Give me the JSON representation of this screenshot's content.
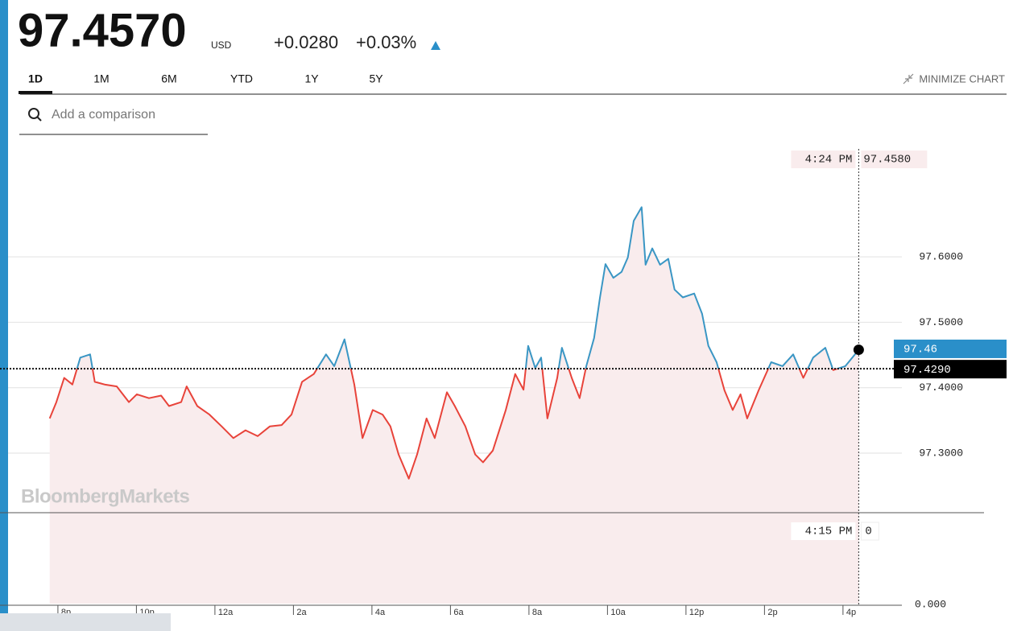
{
  "header": {
    "price": "97.4570",
    "currency": "USD",
    "change": "+0.0280",
    "change_percent": "+0.03%"
  },
  "tabs": [
    "1D",
    "1M",
    "6M",
    "YTD",
    "1Y",
    "5Y"
  ],
  "active_tab": "1D",
  "minimize_label": "MINIMIZE CHART",
  "search_placeholder": "Add a comparison",
  "watermark": "BloombergMarkets",
  "chart_data": {
    "type": "line",
    "x": [
      19.79,
      19.96,
      20.16,
      20.37,
      20.57,
      20.82,
      20.94,
      21.19,
      21.5,
      21.81,
      22.01,
      22.32,
      22.63,
      22.83,
      23.14,
      23.28,
      23.55,
      23.86,
      24.17,
      24.47,
      24.78,
      25.09,
      25.4,
      25.7,
      25.95,
      26.22,
      26.52,
      26.83,
      27.04,
      27.3,
      27.55,
      27.76,
      28.02,
      28.27,
      28.47,
      28.68,
      28.94,
      29.15,
      29.39,
      29.6,
      29.91,
      30.11,
      30.38,
      30.63,
      30.83,
      31.08,
      31.41,
      31.65,
      31.86,
      31.98,
      32.16,
      32.31,
      32.47,
      32.72,
      32.84,
      33.09,
      33.29,
      33.46,
      33.66,
      33.81,
      33.95,
      34.15,
      34.36,
      34.52,
      34.67,
      34.87,
      34.97,
      35.14,
      35.34,
      35.55,
      35.71,
      35.92,
      36.21,
      36.41,
      36.57,
      36.78,
      36.98,
      37.19,
      37.39,
      37.56,
      37.85,
      38.17,
      38.46,
      38.73,
      38.99,
      39.24,
      39.55,
      39.75,
      40.06,
      40.4
    ],
    "values": [
      97.353,
      97.378,
      97.415,
      97.405,
      97.446,
      97.451,
      97.409,
      97.405,
      97.402,
      97.378,
      97.39,
      97.384,
      97.388,
      97.372,
      97.378,
      97.402,
      97.372,
      97.359,
      97.341,
      97.323,
      97.335,
      97.326,
      97.341,
      97.343,
      97.359,
      97.409,
      97.421,
      97.451,
      97.433,
      97.474,
      97.405,
      97.323,
      97.366,
      97.359,
      97.341,
      97.298,
      97.261,
      97.298,
      97.353,
      97.323,
      97.393,
      97.372,
      97.341,
      97.298,
      97.286,
      97.304,
      97.366,
      97.421,
      97.397,
      97.464,
      97.43,
      97.446,
      97.353,
      97.415,
      97.461,
      97.415,
      97.384,
      97.433,
      97.476,
      97.538,
      97.589,
      97.568,
      97.577,
      97.599,
      97.655,
      97.676,
      97.588,
      97.613,
      97.588,
      97.597,
      97.55,
      97.538,
      97.544,
      97.513,
      97.464,
      97.439,
      97.396,
      97.366,
      97.39,
      97.353,
      97.396,
      97.439,
      97.433,
      97.451,
      97.415,
      97.446,
      97.461,
      97.427,
      97.433,
      97.458
    ],
    "color_above": "#3a96c4",
    "color_below": "#e8433a",
    "fill_color": "#f9eced",
    "xlim": [
      18.73,
      41.5
    ],
    "xticks": [
      {
        "value": 20,
        "label": "8p"
      },
      {
        "value": 22,
        "label": "10p"
      },
      {
        "value": 24,
        "label": "12a"
      },
      {
        "value": 26,
        "label": "2a"
      },
      {
        "value": 28,
        "label": "4a"
      },
      {
        "value": 30,
        "label": "6a"
      },
      {
        "value": 32,
        "label": "8a"
      },
      {
        "value": 34,
        "label": "10a"
      },
      {
        "value": 36,
        "label": "12p"
      },
      {
        "value": 38,
        "label": "2p"
      },
      {
        "value": 40,
        "label": "4p"
      }
    ],
    "ylim": [
      97.209,
      97.765
    ],
    "yticks": [
      {
        "value": 97.3,
        "label": "97.3000"
      },
      {
        "value": 97.4,
        "label": "97.4000"
      },
      {
        "value": 97.5,
        "label": "97.5000"
      },
      {
        "value": 97.6,
        "label": "97.6000"
      }
    ],
    "grid": true,
    "volume_ylim": [
      0,
      1
    ],
    "volume_yticks": [
      {
        "value": 0,
        "label": "0.000"
      }
    ],
    "reference": {
      "value": 97.429,
      "label": "97.4290"
    },
    "last": {
      "value": 97.46,
      "label": "97.46"
    },
    "crosshair": {
      "x": 40.4,
      "time": "4:24 PM",
      "price": {
        "value": 97.458,
        "label": "97.4580"
      },
      "volume_time": "4:15 PM",
      "volume": 0
    }
  }
}
